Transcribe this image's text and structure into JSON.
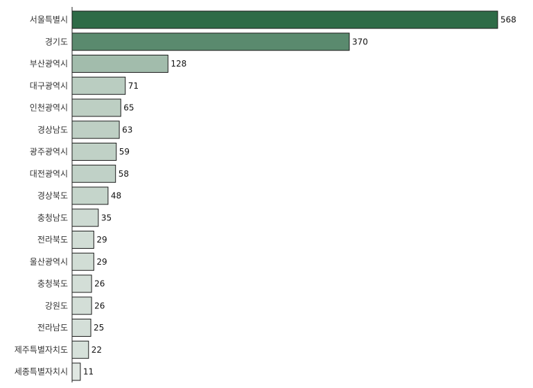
{
  "chart_data": {
    "type": "bar",
    "orientation": "horizontal",
    "title": "",
    "xlabel": "",
    "ylabel": "",
    "categories": [
      "서울특별시",
      "경기도",
      "부산광역시",
      "대구광역시",
      "인천광역시",
      "경상남도",
      "광주광역시",
      "대전광역시",
      "경상북도",
      "충청남도",
      "전라북도",
      "울산광역시",
      "충청북도",
      "강원도",
      "전라남도",
      "제주특별자치도",
      "세종특별자치시"
    ],
    "values": [
      568,
      370,
      128,
      71,
      65,
      63,
      59,
      58,
      48,
      35,
      29,
      29,
      26,
      26,
      25,
      22,
      11
    ],
    "xlim": [
      0,
      568
    ],
    "grid": false,
    "legend": "none",
    "colors": {
      "max": "#2e6b47",
      "min": "#f2f4f2",
      "stroke": "#1a1a1a",
      "axis": "#222222"
    }
  }
}
